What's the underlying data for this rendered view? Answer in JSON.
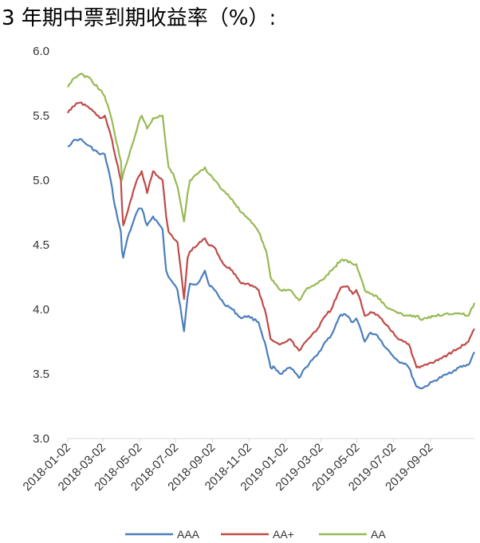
{
  "chart_data": {
    "type": "line",
    "title": "3 年期中票到期收益率（%）:",
    "xlabel": "",
    "ylabel": "",
    "ylim": [
      3.0,
      6.0
    ],
    "yticks": [
      "3.0",
      "3.5",
      "4.0",
      "4.5",
      "5.0",
      "5.5",
      "6.0"
    ],
    "xlim": [
      "2018-01-02",
      "2019-11-15"
    ],
    "xticks": [
      "2018-01-02",
      "2018-03-02",
      "2018-05-02",
      "2018-07-02",
      "2018-09-02",
      "2018-11-02",
      "2019-01-02",
      "2019-03-02",
      "2019-05-02",
      "2019-07-02",
      "2019-09-02"
    ],
    "legend_position": "bottom",
    "series": [
      {
        "name": "AAA",
        "color": "#4a7ebb",
        "dates": [
          "2018-01-02",
          "2018-01-10",
          "2018-01-22",
          "2018-02-05",
          "2018-02-25",
          "2018-03-05",
          "2018-03-15",
          "2018-03-22",
          "2018-04-01",
          "2018-04-03",
          "2018-04-05",
          "2018-04-12",
          "2018-04-22",
          "2018-05-01",
          "2018-05-06",
          "2018-05-15",
          "2018-05-25",
          "2018-06-10",
          "2018-06-16",
          "2018-06-20",
          "2018-06-28",
          "2018-07-05",
          "2018-07-12",
          "2018-07-16",
          "2018-07-22",
          "2018-07-26",
          "2018-08-08",
          "2018-08-20",
          "2018-08-26",
          "2018-09-05",
          "2018-09-20",
          "2018-10-05",
          "2018-10-20",
          "2018-11-01",
          "2018-11-18",
          "2018-12-01",
          "2018-12-08",
          "2018-12-15",
          "2018-12-25",
          "2019-01-10",
          "2019-01-25",
          "2019-02-05",
          "2019-02-25",
          "2019-03-10",
          "2019-03-20",
          "2019-04-05",
          "2019-04-15",
          "2019-04-25",
          "2019-05-01",
          "2019-05-08",
          "2019-05-15",
          "2019-05-25",
          "2019-06-05",
          "2019-06-20",
          "2019-07-10",
          "2019-07-22",
          "2019-07-28",
          "2019-08-10",
          "2019-08-20",
          "2019-09-10",
          "2019-10-01",
          "2019-10-20",
          "2019-11-05",
          "2019-11-15"
        ],
        "values": [
          5.26,
          5.3,
          5.32,
          5.27,
          5.2,
          5.2,
          5.0,
          4.8,
          4.6,
          4.45,
          4.4,
          4.55,
          4.68,
          4.78,
          4.78,
          4.65,
          4.72,
          4.62,
          4.3,
          4.25,
          4.2,
          4.15,
          3.95,
          3.83,
          4.1,
          4.2,
          4.2,
          4.3,
          4.2,
          4.15,
          4.05,
          4.0,
          3.93,
          3.95,
          3.9,
          3.7,
          3.55,
          3.55,
          3.5,
          3.55,
          3.47,
          3.55,
          3.65,
          3.75,
          3.8,
          3.96,
          3.95,
          3.9,
          3.93,
          3.85,
          3.75,
          3.82,
          3.8,
          3.7,
          3.6,
          3.58,
          3.55,
          3.4,
          3.39,
          3.45,
          3.5,
          3.55,
          3.57,
          3.67
        ]
      },
      {
        "name": "AA+",
        "color": "#be4b48",
        "dates": [
          "2018-01-02",
          "2018-01-10",
          "2018-01-22",
          "2018-02-05",
          "2018-02-25",
          "2018-03-05",
          "2018-03-15",
          "2018-03-22",
          "2018-04-01",
          "2018-04-03",
          "2018-04-05",
          "2018-04-12",
          "2018-04-22",
          "2018-05-01",
          "2018-05-06",
          "2018-05-15",
          "2018-05-25",
          "2018-06-10",
          "2018-06-16",
          "2018-06-20",
          "2018-06-28",
          "2018-07-05",
          "2018-07-12",
          "2018-07-16",
          "2018-07-22",
          "2018-07-26",
          "2018-08-08",
          "2018-08-20",
          "2018-08-26",
          "2018-09-05",
          "2018-09-20",
          "2018-10-05",
          "2018-10-20",
          "2018-11-01",
          "2018-11-18",
          "2018-12-01",
          "2018-12-08",
          "2018-12-15",
          "2018-12-25",
          "2019-01-10",
          "2019-01-25",
          "2019-02-05",
          "2019-02-25",
          "2019-03-10",
          "2019-03-20",
          "2019-04-05",
          "2019-04-15",
          "2019-04-25",
          "2019-05-01",
          "2019-05-08",
          "2019-05-15",
          "2019-05-25",
          "2019-06-05",
          "2019-06-20",
          "2019-07-10",
          "2019-07-22",
          "2019-07-28",
          "2019-08-10",
          "2019-08-20",
          "2019-09-10",
          "2019-10-01",
          "2019-10-20",
          "2019-11-05",
          "2019-11-15"
        ],
        "values": [
          5.52,
          5.57,
          5.6,
          5.57,
          5.48,
          5.5,
          5.35,
          5.2,
          5.0,
          4.8,
          4.65,
          4.75,
          4.92,
          5.03,
          5.07,
          4.9,
          5.07,
          5.0,
          4.72,
          4.6,
          4.55,
          4.52,
          4.25,
          4.08,
          4.4,
          4.45,
          4.5,
          4.55,
          4.5,
          4.48,
          4.35,
          4.3,
          4.2,
          4.2,
          4.15,
          3.95,
          3.77,
          3.75,
          3.73,
          3.77,
          3.68,
          3.75,
          3.85,
          3.95,
          4.0,
          4.17,
          4.18,
          4.12,
          4.15,
          4.07,
          3.95,
          3.98,
          3.96,
          3.88,
          3.77,
          3.75,
          3.73,
          3.55,
          3.56,
          3.6,
          3.65,
          3.7,
          3.75,
          3.85
        ]
      },
      {
        "name": "AA",
        "color": "#98b954",
        "dates": [
          "2018-01-02",
          "2018-01-10",
          "2018-01-22",
          "2018-02-05",
          "2018-02-25",
          "2018-03-05",
          "2018-03-15",
          "2018-03-22",
          "2018-04-01",
          "2018-04-03",
          "2018-04-05",
          "2018-04-12",
          "2018-04-22",
          "2018-05-01",
          "2018-05-06",
          "2018-05-15",
          "2018-05-25",
          "2018-06-10",
          "2018-06-16",
          "2018-06-20",
          "2018-06-28",
          "2018-07-05",
          "2018-07-12",
          "2018-07-16",
          "2018-07-22",
          "2018-07-26",
          "2018-08-08",
          "2018-08-20",
          "2018-08-26",
          "2018-09-05",
          "2018-09-20",
          "2018-10-05",
          "2018-10-20",
          "2018-11-01",
          "2018-11-18",
          "2018-12-01",
          "2018-12-08",
          "2018-12-15",
          "2018-12-25",
          "2019-01-10",
          "2019-01-25",
          "2019-02-05",
          "2019-02-25",
          "2019-03-10",
          "2019-03-20",
          "2019-04-05",
          "2019-04-15",
          "2019-04-25",
          "2019-05-01",
          "2019-05-08",
          "2019-05-15",
          "2019-05-25",
          "2019-06-05",
          "2019-06-20",
          "2019-07-10",
          "2019-07-22",
          "2019-07-28",
          "2019-08-10",
          "2019-08-20",
          "2019-09-10",
          "2019-10-01",
          "2019-10-20",
          "2019-11-05",
          "2019-11-15"
        ],
        "values": [
          5.72,
          5.78,
          5.82,
          5.8,
          5.7,
          5.65,
          5.5,
          5.35,
          5.15,
          5.0,
          5.05,
          5.15,
          5.3,
          5.45,
          5.5,
          5.4,
          5.48,
          5.5,
          5.25,
          5.1,
          5.05,
          4.95,
          4.78,
          4.68,
          4.9,
          5.0,
          5.05,
          5.1,
          5.05,
          5.0,
          4.92,
          4.85,
          4.75,
          4.7,
          4.6,
          4.45,
          4.25,
          4.2,
          4.15,
          4.15,
          4.07,
          4.15,
          4.2,
          4.25,
          4.3,
          4.38,
          4.38,
          4.35,
          4.35,
          4.25,
          4.15,
          4.12,
          4.1,
          4.02,
          3.97,
          3.95,
          3.95,
          3.95,
          3.92,
          3.95,
          3.97,
          3.97,
          3.95,
          4.05
        ]
      }
    ]
  }
}
